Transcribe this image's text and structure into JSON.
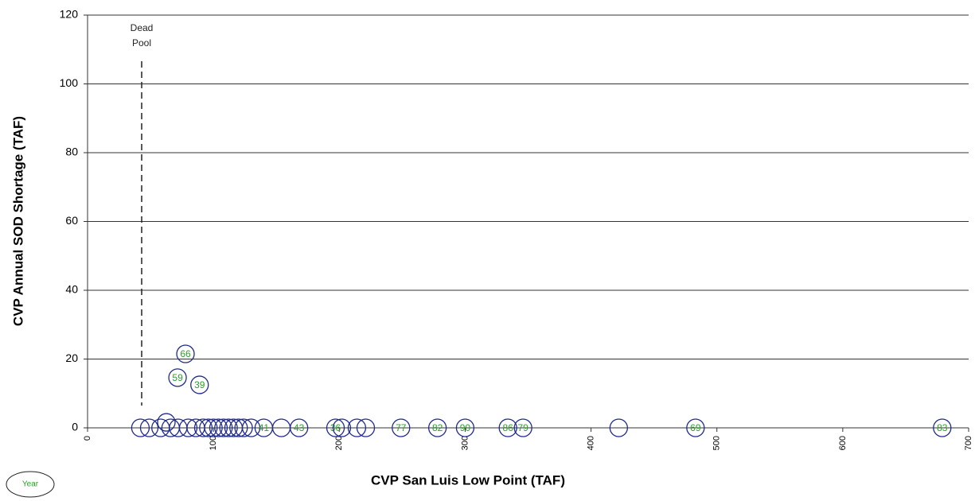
{
  "chart_data": {
    "type": "scatter",
    "y_label": "CVP Annual SOD Shortage (TAF)",
    "x_label": "CVP San Luis Low Point (TAF)",
    "legend_label": "Year",
    "marker_color": "#1f2a8c",
    "label_color": "#2e9e2e",
    "xlim": [
      0,
      700
    ],
    "xticks": [
      0,
      100,
      200,
      300,
      400,
      500,
      600,
      700
    ],
    "ylim": [
      0,
      120
    ],
    "yticks": [
      0,
      20,
      40,
      60,
      80,
      100,
      120
    ],
    "grid": true,
    "vline": {
      "x": 43,
      "label": "Dead Pool"
    },
    "x": [
      42,
      49,
      58,
      62.6,
      66,
      71.5,
      72,
      77.8,
      80,
      86,
      89,
      92,
      96,
      100,
      104,
      108,
      112,
      116,
      120,
      124,
      130,
      140,
      154,
      168,
      197,
      202,
      214,
      221,
      249,
      278,
      300,
      334,
      346,
      422,
      483,
      679
    ],
    "y": [
      0,
      0,
      0,
      1.6,
      0,
      14.6,
      0,
      21.5,
      0,
      0,
      12.5,
      0,
      0,
      0,
      0,
      0,
      0,
      0,
      0,
      0,
      0,
      0,
      0,
      0,
      0,
      0,
      0,
      0,
      0,
      0,
      0,
      0,
      0,
      0,
      0,
      0
    ],
    "labels": [
      null,
      null,
      null,
      null,
      null,
      "59",
      null,
      "66",
      null,
      null,
      "39",
      null,
      null,
      null,
      null,
      null,
      null,
      null,
      null,
      null,
      null,
      "41",
      null,
      "43",
      "36",
      null,
      null,
      null,
      "77",
      "82",
      "90",
      "86",
      "79",
      null,
      "69",
      "83"
    ]
  }
}
